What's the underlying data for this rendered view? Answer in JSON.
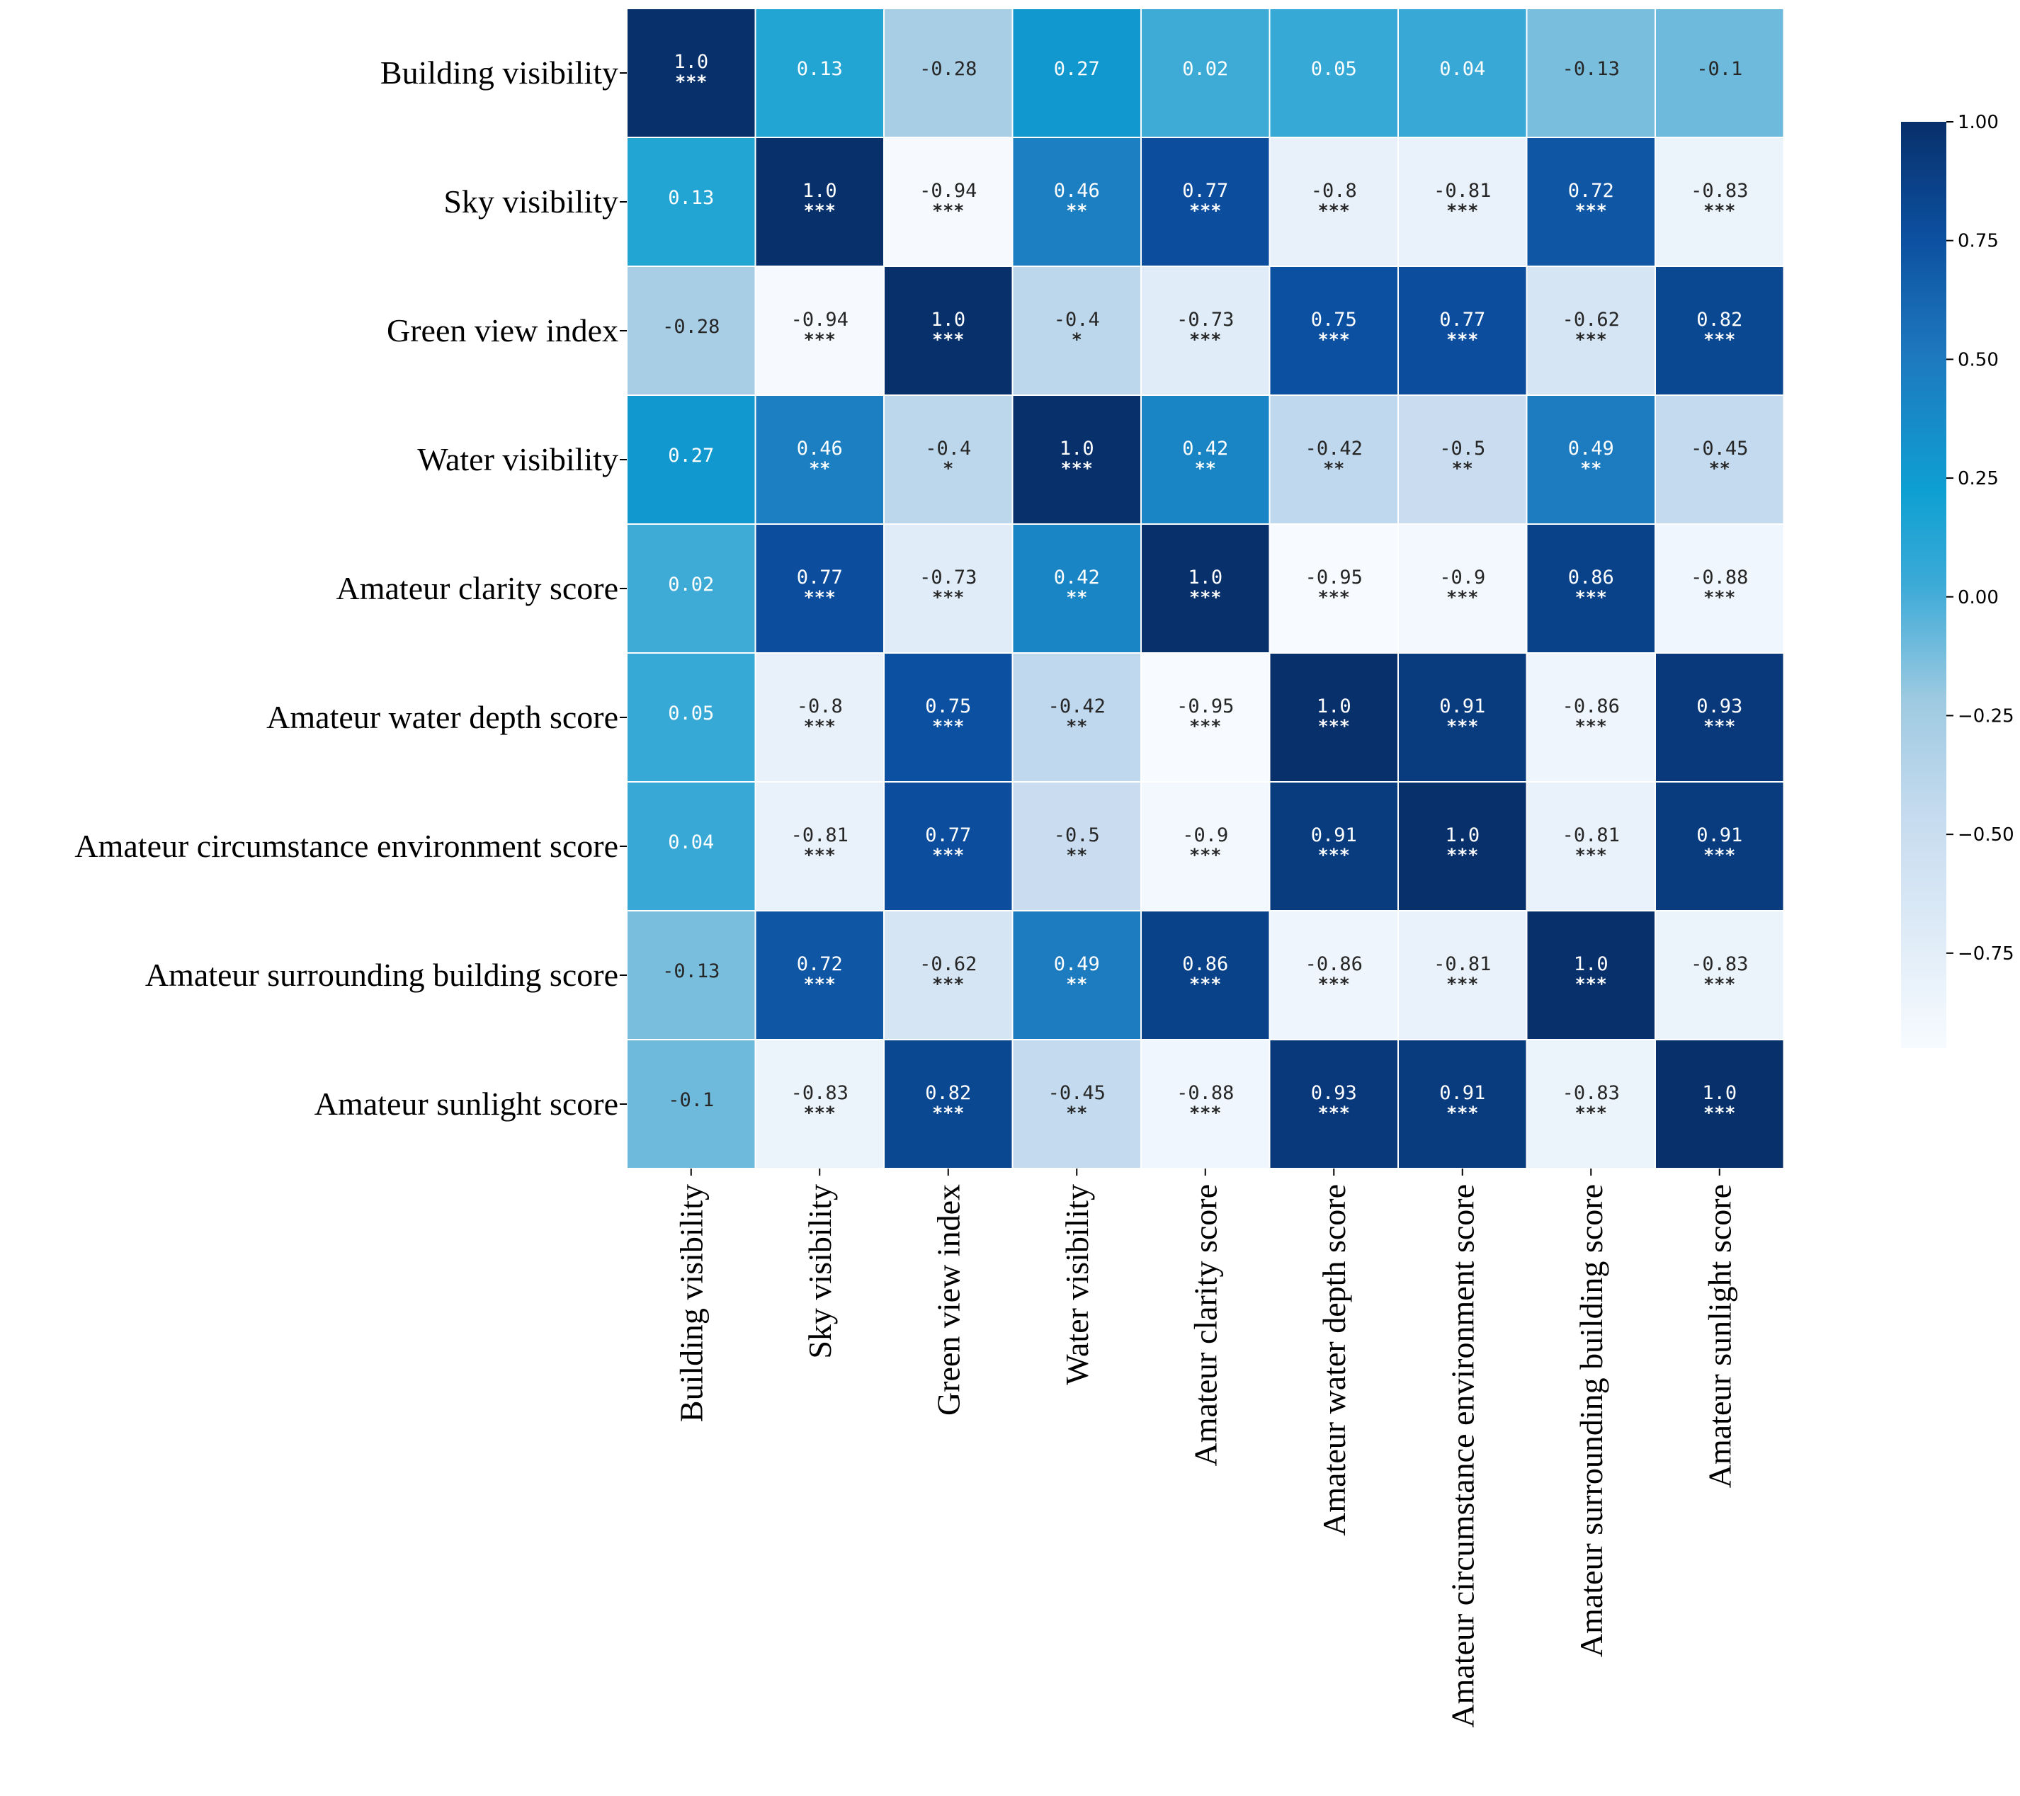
{
  "chart_data": {
    "type": "heatmap",
    "title": "",
    "colormap": "Blues",
    "color_range": [
      -0.95,
      1.0
    ],
    "row_labels": [
      "Building visibility",
      "Sky visibility",
      "Green view index",
      "Water visibility",
      "Amateur clarity score",
      "Amateur water depth score",
      "Amateur circumstance environment score",
      "Amateur surrounding building score",
      "Amateur sunlight score"
    ],
    "col_labels": [
      "Building visibility",
      "Sky visibility",
      "Green view index",
      "Water visibility",
      "Amateur clarity score",
      "Amateur water depth score",
      "Amateur circumstance environment score",
      "Amateur surrounding building score",
      "Amateur sunlight score"
    ],
    "values": [
      [
        1.0,
        0.13,
        -0.28,
        0.27,
        0.02,
        0.05,
        0.04,
        -0.13,
        -0.1
      ],
      [
        0.13,
        1.0,
        -0.94,
        0.46,
        0.77,
        -0.8,
        -0.81,
        0.72,
        -0.83
      ],
      [
        -0.28,
        -0.94,
        1.0,
        -0.4,
        -0.73,
        0.75,
        0.77,
        -0.62,
        0.82
      ],
      [
        0.27,
        0.46,
        -0.4,
        1.0,
        0.42,
        -0.42,
        -0.5,
        0.49,
        -0.45
      ],
      [
        0.02,
        0.77,
        -0.73,
        0.42,
        1.0,
        -0.95,
        -0.9,
        0.86,
        -0.88
      ],
      [
        0.05,
        -0.8,
        0.75,
        -0.42,
        -0.95,
        1.0,
        0.91,
        -0.86,
        0.93
      ],
      [
        0.04,
        -0.81,
        0.77,
        -0.5,
        -0.9,
        0.91,
        1.0,
        -0.81,
        0.91
      ],
      [
        -0.13,
        0.72,
        -0.62,
        0.49,
        0.86,
        -0.86,
        -0.81,
        1.0,
        -0.83
      ],
      [
        -0.1,
        -0.83,
        0.82,
        -0.45,
        -0.88,
        0.93,
        0.91,
        -0.83,
        1.0
      ]
    ],
    "value_text": [
      [
        "1.0",
        "0.13",
        "-0.28",
        "0.27",
        "0.02",
        "0.05",
        "0.04",
        "-0.13",
        "-0.1"
      ],
      [
        "0.13",
        "1.0",
        "-0.94",
        "0.46",
        "0.77",
        "-0.8",
        "-0.81",
        "0.72",
        "-0.83"
      ],
      [
        "-0.28",
        "-0.94",
        "1.0",
        "-0.4",
        "-0.73",
        "0.75",
        "0.77",
        "-0.62",
        "0.82"
      ],
      [
        "0.27",
        "0.46",
        "-0.4",
        "1.0",
        "0.42",
        "-0.42",
        "-0.5",
        "0.49",
        "-0.45"
      ],
      [
        "0.02",
        "0.77",
        "-0.73",
        "0.42",
        "1.0",
        "-0.95",
        "-0.9",
        "0.86",
        "-0.88"
      ],
      [
        "0.05",
        "-0.8",
        "0.75",
        "-0.42",
        "-0.95",
        "1.0",
        "0.91",
        "-0.86",
        "0.93"
      ],
      [
        "0.04",
        "-0.81",
        "0.77",
        "-0.5",
        "-0.9",
        "0.91",
        "1.0",
        "-0.81",
        "0.91"
      ],
      [
        "-0.13",
        "0.72",
        "-0.62",
        "0.49",
        "0.86",
        "-0.86",
        "-0.81",
        "1.0",
        "-0.83"
      ],
      [
        "-0.1",
        "-0.83",
        "0.82",
        "-0.45",
        "-0.88",
        "0.93",
        "0.91",
        "-0.83",
        "1.0"
      ]
    ],
    "significance": [
      [
        "***",
        "",
        "",
        "",
        "",
        "",
        "",
        "",
        ""
      ],
      [
        "",
        "***",
        "***",
        "**",
        "***",
        "***",
        "***",
        "***",
        "***"
      ],
      [
        "",
        "***",
        "***",
        "*",
        "***",
        "***",
        "***",
        "***",
        "***"
      ],
      [
        "",
        "**",
        "*",
        "***",
        "**",
        "**",
        "**",
        "**",
        "**"
      ],
      [
        "",
        "***",
        "***",
        "**",
        "***",
        "***",
        "***",
        "***",
        "***"
      ],
      [
        "",
        "***",
        "***",
        "**",
        "***",
        "***",
        "***",
        "***",
        "***"
      ],
      [
        "",
        "***",
        "***",
        "**",
        "***",
        "***",
        "***",
        "***",
        "***"
      ],
      [
        "",
        "***",
        "***",
        "**",
        "***",
        "***",
        "***",
        "***",
        "***"
      ],
      [
        "",
        "***",
        "***",
        "**",
        "***",
        "***",
        "***",
        "***",
        "***"
      ]
    ],
    "colorbar": {
      "ticks": [
        1.0,
        0.75,
        0.5,
        0.25,
        0.0,
        -0.25,
        -0.5,
        -0.75
      ],
      "tick_labels": [
        "1.00",
        "0.75",
        "0.50",
        "0.25",
        "0.00",
        "−0.25",
        "−0.50",
        "−0.75"
      ],
      "range": [
        -0.95,
        1.0
      ]
    }
  }
}
